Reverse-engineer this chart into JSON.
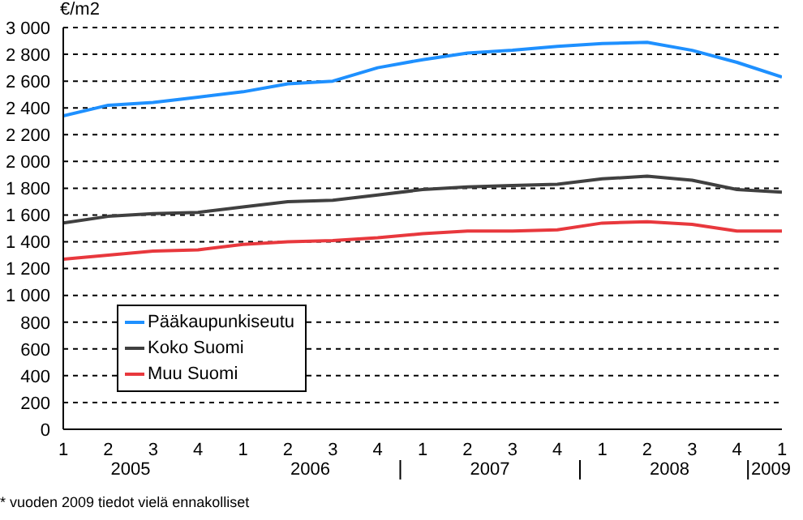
{
  "chart_data": {
    "type": "line",
    "ylabel": "€/m2",
    "categories": [
      "1",
      "2",
      "3",
      "4",
      "1",
      "2",
      "3",
      "4",
      "1",
      "2",
      "3",
      "4",
      "1",
      "2",
      "3",
      "4",
      "1"
    ],
    "series": [
      {
        "name": "Pääkaupunkiseutu",
        "color": "#1e90ff",
        "values": [
          2340,
          2420,
          2440,
          2480,
          2520,
          2580,
          2600,
          2700,
          2760,
          2810,
          2830,
          2860,
          2880,
          2890,
          2830,
          2740,
          2630
        ]
      },
      {
        "name": "Koko Suomi",
        "color": "#404040",
        "values": [
          1540,
          1590,
          1610,
          1620,
          1660,
          1700,
          1710,
          1750,
          1790,
          1810,
          1820,
          1830,
          1870,
          1890,
          1860,
          1790,
          1770
        ]
      },
      {
        "name": "Muu Suomi",
        "color": "#e8383d",
        "values": [
          1270,
          1300,
          1330,
          1340,
          1380,
          1400,
          1410,
          1430,
          1460,
          1480,
          1480,
          1490,
          1540,
          1550,
          1530,
          1480,
          1480
        ]
      }
    ],
    "ylim": [
      0,
      3000
    ],
    "yticks": [
      0,
      200,
      400,
      600,
      800,
      {
        "value": 1000,
        "label": "1 000"
      },
      {
        "value": 1200,
        "label": "1 200"
      },
      {
        "value": 1400,
        "label": "1 400"
      },
      {
        "value": 1600,
        "label": "1 600"
      },
      {
        "value": 1800,
        "label": "1 800"
      },
      {
        "value": 2000,
        "label": "2 000"
      },
      {
        "value": 2200,
        "label": "2 200"
      },
      {
        "value": 2400,
        "label": "2 400"
      },
      {
        "value": 2600,
        "label": "2 600"
      },
      {
        "value": 2800,
        "label": "2 800"
      },
      {
        "value": 3000,
        "label": "3 000"
      }
    ],
    "grid": "y",
    "legend": "bottom left",
    "marker": "none",
    "line_style": "solid",
    "annotations": [
      "2005",
      "2006",
      "2007",
      "2008",
      "2009",
      "* vuoden 2009 tiedot vielä ennakolliset"
    ]
  }
}
